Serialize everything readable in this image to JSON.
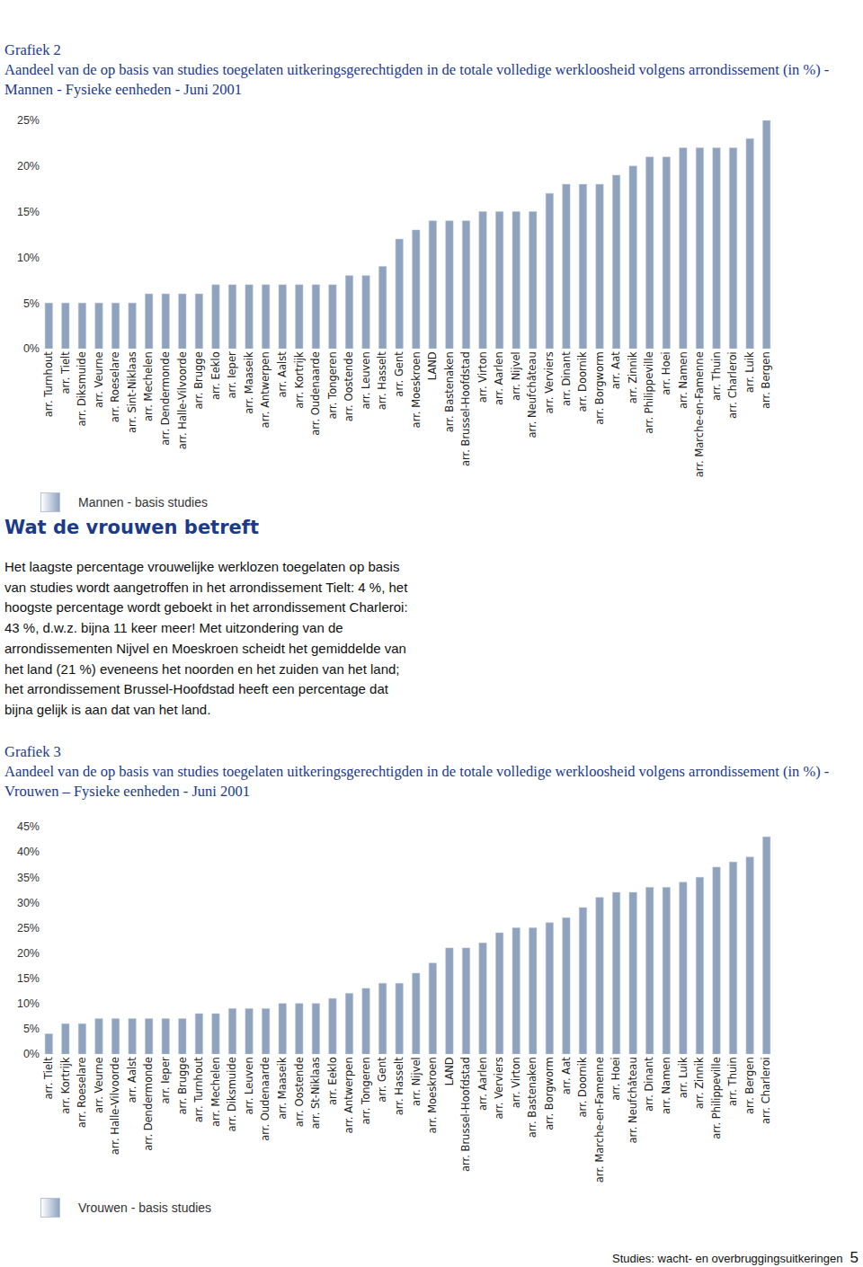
{
  "chart_data": [
    {
      "type": "bar",
      "title": "Grafiek 2",
      "subtitle": "Aandeel van de op basis van studies toegelaten uitkeringsgerechtigden in de totale volledige werkloosheid volgens arrondissement (in %) - Mannen - Fysieke eenheden - Juni 2001",
      "categories": [
        "arr. Turnhout",
        "arr. Tielt",
        "arr. Diksmuide",
        "arr. Veurne",
        "arr. Roeselare",
        "arr. Sint-Niklaas",
        "arr. Mechelen",
        "arr. Dendermonde",
        "arr. Halle-Vilvoorde",
        "arr. Brugge",
        "arr. Eeklo",
        "arr. Ieper",
        "arr. Maaseik",
        "arr. Antwerpen",
        "arr. Aalst",
        "arr. Kortrijk",
        "arr. Oudenaarde",
        "arr. Tongeren",
        "arr. Oostende",
        "arr. Leuven",
        "arr. Hasselt",
        "arr. Gent",
        "arr. Moeskroen",
        "LAND",
        "arr. Bastenaken",
        "arr. Brussel-Hoofdstad",
        "arr. Virton",
        "arr. Aarlen",
        "arr. Nijvel",
        "arr. Neufchâteau",
        "arr. Verviers",
        "arr. Dinant",
        "arr. Doornik",
        "arr. Borgworm",
        "arr. Aat",
        "arr. Zinnik",
        "arr. Philippeville",
        "arr. Hoei",
        "arr. Namen",
        "arr. Marche-en-Famenne",
        "arr. Thuin",
        "arr. Charleroi",
        "arr. Luik",
        "arr. Bergen"
      ],
      "series": [
        {
          "name": "Mannen - basis studies",
          "color": "#8fa3bf",
          "values": [
            5,
            5,
            5,
            5,
            5,
            5,
            6,
            6,
            6,
            6,
            7,
            7,
            7,
            7,
            7,
            7,
            7,
            7,
            8,
            8,
            9,
            12,
            13,
            14,
            14,
            14,
            15,
            15,
            15,
            15,
            17,
            18,
            18,
            18,
            19,
            20,
            21,
            21,
            22,
            22,
            22,
            22,
            23,
            25
          ]
        }
      ],
      "ylim": [
        0,
        25
      ],
      "yticks": [
        {
          "value": 0,
          "label": "0%"
        },
        {
          "value": 5,
          "label": "5%"
        },
        {
          "value": 10,
          "label": "10%"
        },
        {
          "value": 15,
          "label": "15%"
        },
        {
          "value": 20,
          "label": "20%"
        },
        {
          "value": 25,
          "label": "25%"
        }
      ],
      "grid": false
    },
    {
      "type": "bar",
      "title": "Grafiek 3",
      "subtitle": "Aandeel van de op basis van studies toegelaten uitkeringsgerechtigden in de totale volledige werkloosheid volgens arrondissement (in %) - Vrouwen – Fysieke eenheden - Juni 2001",
      "categories": [
        "arr. Tielt",
        "arr. Kortrijk",
        "arr. Roeselare",
        "arr. Veurne",
        "arr. Halle-Vilvoorde",
        "arr. Aalst",
        "arr. Dendermonde",
        "arr. Ieper",
        "arr. Brugge",
        "arr. Turnhout",
        "arr. Mechelen",
        "arr. Diksmuide",
        "arr. Leuven",
        "arr. Oudenaarde",
        "arr. Maaseik",
        "arr. Oostende",
        "arr. St-Niklaas",
        "arr. Eeklo",
        "arr. Antwerpen",
        "arr. Tongeren",
        "arr. Gent",
        "arr. Hasselt",
        "arr. Nijvel",
        "arr. Moeskroen",
        "LAND",
        "arr. Brussel-Hoofdstad",
        "arr. Aarlen",
        "arr. Verviers",
        "arr. Virton",
        "arr. Bastenaken",
        "arr. Borgworm",
        "arr. Aat",
        "arr. Doornik",
        "arr. Marche-en-Famenne",
        "arr. Hoei",
        "arr. Neufchâteau",
        "arr. Dinant",
        "arr. Namen",
        "arr. Luik",
        "arr. Zinnik",
        "arr. Philippeville",
        "arr. Thuin",
        "arr. Bergen",
        "arr. Charleroi"
      ],
      "series": [
        {
          "name": "Vrouwen - basis studies",
          "color": "#8fa3bf",
          "values": [
            4,
            6,
            6,
            7,
            7,
            7,
            7,
            7,
            7,
            8,
            8,
            9,
            9,
            9,
            10,
            10,
            10,
            11,
            12,
            13,
            14,
            14,
            16,
            18,
            21,
            21,
            22,
            24,
            25,
            25,
            26,
            27,
            29,
            31,
            32,
            32,
            33,
            33,
            34,
            35,
            37,
            38,
            39,
            43
          ]
        }
      ],
      "ylim": [
        0,
        45
      ],
      "yticks": [
        {
          "value": 0,
          "label": "0%"
        },
        {
          "value": 5,
          "label": "5%"
        },
        {
          "value": 10,
          "label": "10%"
        },
        {
          "value": 15,
          "label": "15%"
        },
        {
          "value": 20,
          "label": "20%"
        },
        {
          "value": 25,
          "label": "25%"
        },
        {
          "value": 30,
          "label": "30%"
        },
        {
          "value": 35,
          "label": "35%"
        },
        {
          "value": 40,
          "label": "40%"
        },
        {
          "value": 45,
          "label": "45%"
        }
      ],
      "grid": false
    }
  ],
  "document": {
    "heading": "Wat de vrouwen betreft",
    "paragraph": "Het laagste percentage vrouwelijke werklozen toegelaten op basis van studies wordt aangetroffen in het arrondissement Tielt: 4 %, het hoogste percentage wordt geboekt in het arrondissement Charleroi: 43 %, d.w.z. bijna 11 keer meer! Met uitzondering van de arrondissementen Nijvel en Moeskroen scheidt het gemiddelde van het land (21 %) eveneens het noorden en het zuiden van het land; het arrondissement Brussel-Hoofdstad heeft een percentage dat bijna gelijk is aan dat van het land.",
    "footer": "Studies: wacht- en overbruggingsuitkeringen",
    "page": "5"
  }
}
